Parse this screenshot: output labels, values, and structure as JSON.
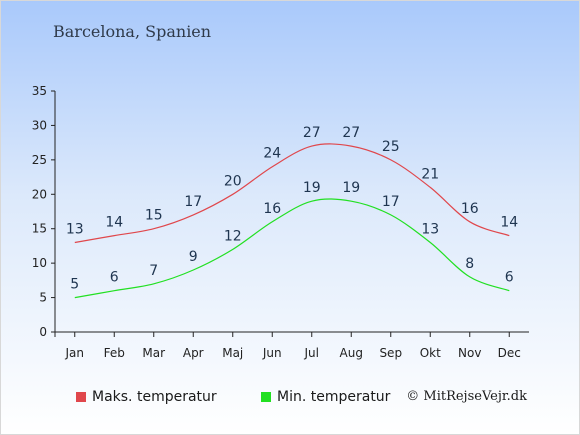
{
  "header": {
    "title": "Barcelona, Spanien"
  },
  "credit": "© MitRejseVejr.dk",
  "colors": {
    "max": "#e0474c",
    "min": "#22e022"
  },
  "chart_data": {
    "type": "line",
    "categories": [
      "Jan",
      "Feb",
      "Mar",
      "Apr",
      "Maj",
      "Jun",
      "Jul",
      "Aug",
      "Sep",
      "Okt",
      "Nov",
      "Dec"
    ],
    "series": [
      {
        "name": "Maks. temperatur",
        "values": [
          13,
          14,
          15,
          17,
          20,
          24,
          27,
          27,
          25,
          21,
          16,
          14
        ]
      },
      {
        "name": "Min. temperatur",
        "values": [
          5,
          6,
          7,
          9,
          12,
          16,
          19,
          19,
          17,
          13,
          8,
          6
        ]
      }
    ],
    "ylim": [
      0,
      35
    ],
    "yticks": [
      0,
      5,
      10,
      15,
      20,
      25,
      30,
      35
    ],
    "grid": false,
    "legend": "bottom"
  }
}
